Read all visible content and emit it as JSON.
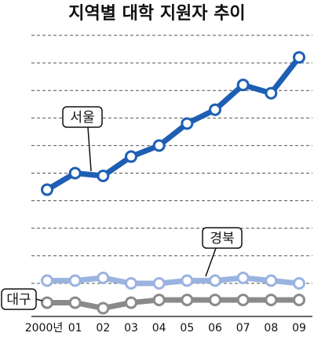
{
  "chart_data": {
    "type": "line",
    "title": "지역별 대학 지원자 추이",
    "categories": [
      "2000년",
      "01",
      "02",
      "03",
      "04",
      "05",
      "06",
      "07",
      "08",
      "09"
    ],
    "series": [
      {
        "name": "서울",
        "color": "#1e5fb4",
        "values": [
          4.4,
          5.0,
          4.9,
          5.6,
          6.0,
          6.8,
          7.3,
          8.2,
          7.9,
          9.2
        ]
      },
      {
        "name": "경북",
        "color": "#9bb3e0",
        "values": [
          1.1,
          1.1,
          1.2,
          1.0,
          1.0,
          1.1,
          1.1,
          1.2,
          1.1,
          1.0
        ]
      },
      {
        "name": "대구",
        "color": "#8a8a8a",
        "values": [
          0.3,
          0.3,
          0.1,
          0.3,
          0.4,
          0.4,
          0.4,
          0.4,
          0.4,
          0.4
        ]
      }
    ],
    "ylim": [
      -0.2,
      10
    ],
    "yticks": [
      1,
      2,
      3,
      4,
      5,
      6,
      7,
      8,
      9,
      10
    ],
    "grid": true
  }
}
